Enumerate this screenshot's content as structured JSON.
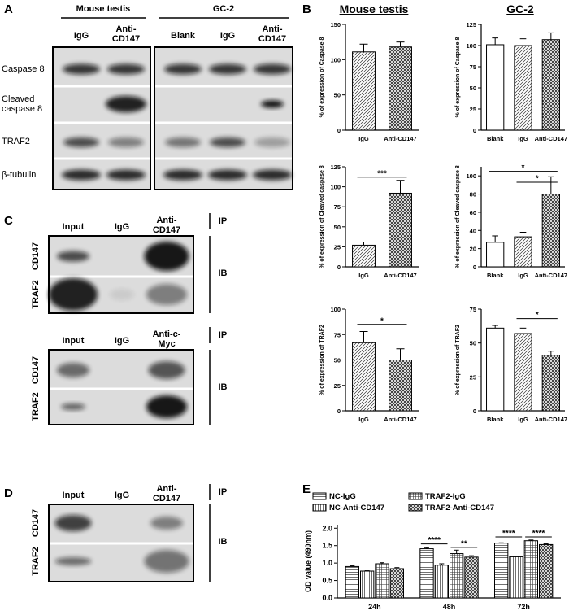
{
  "panel_labels": [
    "A",
    "B",
    "C",
    "D",
    "E"
  ],
  "panel_a": {
    "groups": [
      "Mouse testis",
      "GC-2"
    ],
    "lanes": [
      "IgG",
      "Anti-CD147",
      "Blank",
      "IgG",
      "Anti-CD147"
    ],
    "rows": [
      "Caspase 8",
      "Cleaved caspase 8",
      "TRAF2",
      "β-tubulin"
    ]
  },
  "panel_b": {
    "headers": [
      "Mouse testis",
      "GC-2"
    ]
  },
  "panel_c": [
    {
      "lanes": [
        "Input",
        "IgG",
        "Anti-CD147"
      ],
      "rows": [
        "CD147",
        "TRAF2"
      ],
      "ip": "IP",
      "ib": "IB"
    },
    {
      "lanes": [
        "Input",
        "IgG",
        "Anti-c-Myc"
      ],
      "rows": [
        "CD147",
        "TRAF2"
      ],
      "ip": "IP",
      "ib": "IB"
    }
  ],
  "panel_d": {
    "lanes": [
      "Input",
      "IgG",
      "Anti-CD147"
    ],
    "rows": [
      "CD147",
      "TRAF2"
    ],
    "ip": "IP",
    "ib": "IB"
  },
  "chart_data": [
    {
      "type": "bar",
      "ylabel": "% of expression of Caspase 8",
      "categories": [
        "IgG",
        "Anti-CD147"
      ],
      "values": [
        111,
        118
      ],
      "errors": [
        11,
        7
      ],
      "patterns": [
        "hatch",
        "cross"
      ],
      "ylim": [
        0,
        150
      ],
      "yticks": [
        0,
        50,
        100,
        150
      ]
    },
    {
      "type": "bar",
      "ylabel": "% of expression of Caspase 8",
      "categories": [
        "Blank",
        "IgG",
        "Anti-CD147"
      ],
      "values": [
        101,
        100,
        107
      ],
      "errors": [
        8,
        8,
        8
      ],
      "patterns": [
        "none",
        "hatch",
        "cross"
      ],
      "ylim": [
        0,
        125
      ],
      "yticks": [
        0,
        25,
        50,
        75,
        100,
        125
      ]
    },
    {
      "type": "bar",
      "ylabel": "% of expression of Cleaved caspase 8",
      "categories": [
        "IgG",
        "Anti-CD147"
      ],
      "values": [
        27,
        92
      ],
      "errors": [
        4,
        16
      ],
      "patterns": [
        "hatch",
        "cross"
      ],
      "ylim": [
        0,
        125
      ],
      "yticks": [
        0,
        25,
        50,
        75,
        100,
        125
      ],
      "annotations": [
        "***"
      ]
    },
    {
      "type": "bar",
      "ylabel": "% of expression of Cleaved caspase 8",
      "categories": [
        "Blank",
        "IgG",
        "Anti-CD147"
      ],
      "values": [
        27,
        33,
        80
      ],
      "errors": [
        7,
        5,
        19
      ],
      "patterns": [
        "none",
        "hatch",
        "cross"
      ],
      "ylim": [
        0,
        110
      ],
      "yticks": [
        0,
        20,
        40,
        60,
        80,
        100
      ],
      "annotations": [
        "*",
        "*"
      ]
    },
    {
      "type": "bar",
      "ylabel": "% of expression of TRAF2",
      "categories": [
        "IgG",
        "Anti-CD147"
      ],
      "values": [
        67,
        50
      ],
      "errors": [
        11,
        11
      ],
      "patterns": [
        "hatch",
        "cross"
      ],
      "ylim": [
        0,
        100
      ],
      "yticks": [
        0,
        25,
        50,
        75,
        100
      ],
      "annotations": [
        "*"
      ]
    },
    {
      "type": "bar",
      "ylabel": "% of expression of TRAF2",
      "categories": [
        "Blank",
        "IgG",
        "Anti-CD147"
      ],
      "values": [
        61,
        57,
        41
      ],
      "errors": [
        2,
        4,
        3
      ],
      "patterns": [
        "none",
        "hatch",
        "cross"
      ],
      "ylim": [
        0,
        75
      ],
      "yticks": [
        0,
        25,
        50,
        75
      ],
      "annotations": [
        "*"
      ]
    },
    {
      "type": "grouped_bar",
      "ylabel": "OD value (490nm)",
      "categories": [
        "24h",
        "48h",
        "72h"
      ],
      "series": [
        {
          "name": "NC-IgG",
          "pattern": "hlines",
          "values": [
            0.9,
            1.41,
            1.57
          ],
          "errors": [
            0.02,
            0.03,
            0.01
          ]
        },
        {
          "name": "NC-Anti-CD147",
          "pattern": "vlines",
          "values": [
            0.77,
            0.94,
            1.18
          ],
          "errors": [
            0.01,
            0.04,
            0.01
          ]
        },
        {
          "name": "TRAF2-IgG",
          "pattern": "grid",
          "values": [
            0.98,
            1.27,
            1.64
          ],
          "errors": [
            0.03,
            0.1,
            0.02
          ]
        },
        {
          "name": "TRAF2-Anti-CD147",
          "pattern": "cross",
          "values": [
            0.84,
            1.17,
            1.53
          ],
          "errors": [
            0.03,
            0.04,
            0.02
          ]
        }
      ],
      "ylim": [
        0,
        2.1
      ],
      "yticks": [
        {
          "value": 0,
          "label": "0.0"
        },
        0.5,
        {
          "value": 1,
          "label": "1.0"
        },
        1.5,
        {
          "value": 2,
          "label": "2.0"
        }
      ],
      "annotations": [
        "****",
        "**",
        "****",
        "****"
      ]
    }
  ]
}
